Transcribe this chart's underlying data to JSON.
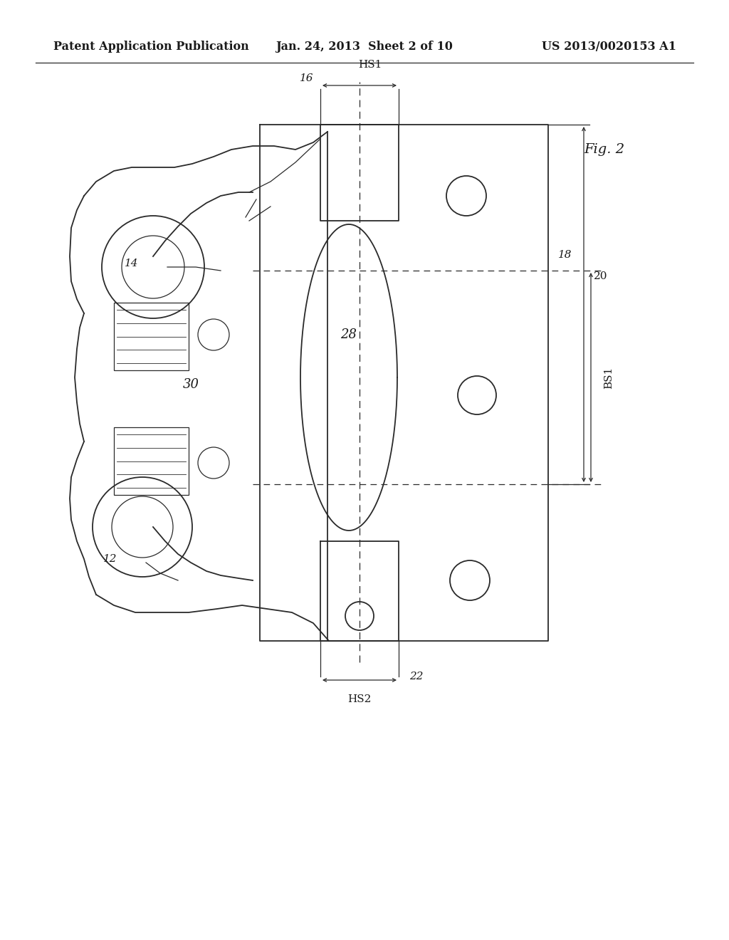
{
  "background_color": "#ffffff",
  "header_left": "Patent Application Publication",
  "header_center": "Jan. 24, 2013  Sheet 2 of 10",
  "header_right": "US 2013/0020153 A1",
  "fig_label": "Fig. 2",
  "line_color": "#2a2a2a",
  "text_color": "#1a1a1a",
  "header_fontsize": 11.5,
  "label_fontsize": 11
}
